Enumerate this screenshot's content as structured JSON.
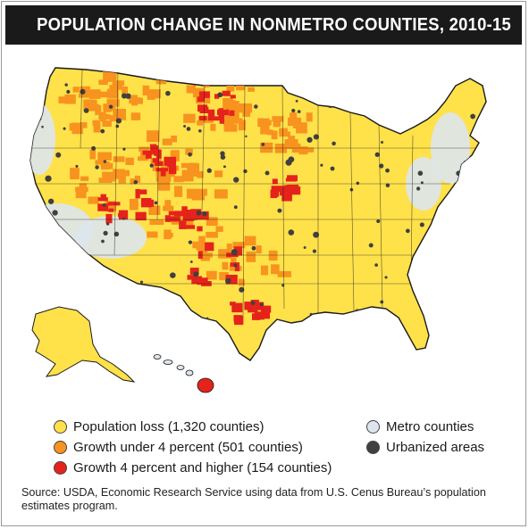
{
  "title": "POPULATION CHANGE IN NONMETRO COUNTIES, 2010-15",
  "legend": {
    "items": [
      {
        "label": "Population loss (1,320 counties)",
        "color": "#ffe14a"
      },
      {
        "label": "Growth under 4 percent (501 counties)",
        "color": "#f7931e"
      },
      {
        "label": "Growth 4 percent and higher (154 counties)",
        "color": "#e5231b"
      },
      {
        "label": "Metro counties",
        "color": "#dde6ee"
      },
      {
        "label": "Urbanized areas",
        "color": "#404040"
      }
    ]
  },
  "source": "Source: USDA, Economic Research Service using data from U.S. Cenus Bureau’s population estimates program.",
  "colors": {
    "loss": "#ffe14a",
    "growth_low": "#f7931e",
    "growth_high": "#e5231b",
    "metro": "#dde6ee",
    "urban": "#404040",
    "border": "#1a1a1a",
    "title_bg": "#1a1a1a"
  }
}
